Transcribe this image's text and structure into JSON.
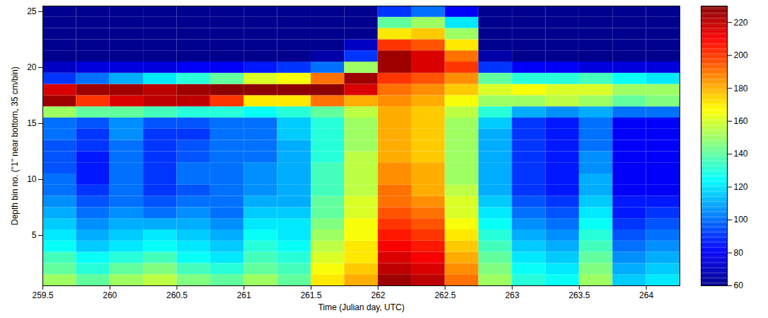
{
  "chart_data": {
    "type": "heatmap",
    "xlabel": "Time (Julian day, UTC)",
    "ylabel": "Depth bin no. (\"1\" near bottom, 35 cm/bin)",
    "xlim": [
      259.5,
      264.25
    ],
    "ylim": [
      0.5,
      25.5
    ],
    "xticks": [
      259.5,
      260,
      260.5,
      261,
      261.5,
      262,
      262.5,
      263,
      263.5,
      264
    ],
    "yticks": [
      5,
      10,
      15,
      20,
      25
    ],
    "x_edges": [
      259.5,
      259.75,
      260,
      260.25,
      260.5,
      260.75,
      261,
      261.25,
      261.5,
      261.75,
      262,
      262.25,
      262.5,
      262.75,
      263,
      263.25,
      263.5,
      263.75,
      264,
      264.25
    ],
    "y_edges": [
      0.5,
      1.5,
      2.5,
      3.5,
      4.5,
      5.5,
      6.5,
      7.5,
      8.5,
      9.5,
      10.5,
      11.5,
      12.5,
      13.5,
      14.5,
      15.5,
      16.5,
      17.5,
      18.5,
      19.5,
      20.5,
      21.5,
      22.5,
      23.5,
      24.5,
      25.5
    ],
    "values": [
      [
        150,
        140,
        135,
        125,
        120,
        115,
        110,
        105,
        100,
        100,
        95,
        95,
        95,
        100,
        100,
        150,
        225,
        215,
        90,
        70,
        60,
        60,
        60,
        60,
        60
      ],
      [
        140,
        130,
        125,
        115,
        110,
        105,
        100,
        95,
        90,
        85,
        85,
        85,
        90,
        90,
        95,
        140,
        200,
        225,
        100,
        75,
        60,
        60,
        60,
        60,
        60
      ],
      [
        150,
        140,
        130,
        120,
        115,
        110,
        105,
        100,
        100,
        100,
        100,
        100,
        100,
        105,
        105,
        140,
        215,
        225,
        110,
        75,
        60,
        60,
        60,
        60,
        60
      ],
      [
        155,
        145,
        135,
        125,
        120,
        110,
        100,
        95,
        90,
        90,
        90,
        90,
        90,
        90,
        95,
        135,
        220,
        220,
        120,
        75,
        60,
        60,
        60,
        60,
        60
      ],
      [
        145,
        135,
        125,
        120,
        115,
        110,
        105,
        100,
        95,
        100,
        100,
        95,
        95,
        90,
        95,
        130,
        220,
        225,
        130,
        80,
        60,
        60,
        60,
        60,
        60
      ],
      [
        140,
        130,
        120,
        115,
        110,
        105,
        100,
        100,
        100,
        100,
        100,
        100,
        100,
        100,
        100,
        130,
        200,
        228,
        140,
        80,
        60,
        60,
        60,
        60,
        60
      ],
      [
        150,
        140,
        135,
        130,
        125,
        120,
        115,
        110,
        105,
        105,
        105,
        100,
        100,
        100,
        100,
        125,
        170,
        228,
        160,
        85,
        60,
        60,
        60,
        60,
        60
      ],
      [
        140,
        135,
        130,
        125,
        120,
        120,
        115,
        110,
        110,
        110,
        110,
        110,
        110,
        115,
        115,
        130,
        170,
        228,
        165,
        90,
        60,
        60,
        60,
        60,
        60
      ],
      [
        170,
        165,
        160,
        155,
        150,
        145,
        140,
        140,
        135,
        135,
        135,
        130,
        130,
        130,
        130,
        140,
        190,
        228,
        190,
        100,
        65,
        60,
        60,
        60,
        60
      ],
      [
        180,
        175,
        170,
        170,
        165,
        165,
        160,
        160,
        155,
        155,
        155,
        155,
        150,
        150,
        150,
        155,
        180,
        215,
        225,
        150,
        90,
        70,
        60,
        60,
        60
      ],
      [
        225,
        220,
        215,
        210,
        205,
        200,
        195,
        190,
        190,
        185,
        185,
        180,
        180,
        180,
        180,
        180,
        185,
        190,
        200,
        225,
        225,
        200,
        170,
        140,
        90
      ],
      [
        220,
        215,
        210,
        205,
        200,
        195,
        190,
        185,
        180,
        180,
        180,
        175,
        175,
        175,
        175,
        175,
        180,
        185,
        195,
        215,
        215,
        195,
        175,
        150,
        100
      ],
      [
        190,
        185,
        180,
        175,
        170,
        165,
        160,
        160,
        155,
        150,
        150,
        150,
        150,
        150,
        150,
        155,
        165,
        175,
        185,
        200,
        190,
        170,
        150,
        120,
        80
      ],
      [
        150,
        145,
        140,
        135,
        130,
        125,
        120,
        115,
        110,
        110,
        110,
        110,
        110,
        110,
        115,
        130,
        150,
        160,
        140,
        90,
        65,
        60,
        60,
        60,
        60
      ],
      [
        130,
        125,
        120,
        115,
        110,
        105,
        100,
        95,
        90,
        90,
        90,
        90,
        90,
        90,
        90,
        110,
        150,
        165,
        130,
        80,
        60,
        60,
        60,
        60,
        60
      ],
      [
        125,
        120,
        115,
        110,
        105,
        100,
        95,
        90,
        85,
        85,
        85,
        85,
        85,
        85,
        85,
        105,
        155,
        160,
        130,
        80,
        60,
        60,
        60,
        60,
        60
      ],
      [
        150,
        145,
        140,
        135,
        130,
        125,
        120,
        115,
        110,
        110,
        105,
        105,
        100,
        100,
        100,
        110,
        150,
        160,
        135,
        75,
        60,
        60,
        60,
        60,
        60
      ],
      [
        115,
        110,
        105,
        100,
        95,
        90,
        85,
        85,
        80,
        80,
        80,
        80,
        80,
        80,
        80,
        100,
        140,
        150,
        125,
        75,
        60,
        60,
        60,
        60,
        60
      ],
      [
        120,
        115,
        110,
        105,
        100,
        95,
        90,
        85,
        80,
        80,
        80,
        80,
        80,
        80,
        80,
        100,
        145,
        150,
        120,
        75,
        60,
        60,
        60,
        60,
        60
      ]
    ],
    "colorbar": {
      "lim": [
        60,
        230
      ],
      "ticks": [
        60,
        80,
        100,
        120,
        140,
        160,
        180,
        200,
        220
      ]
    }
  }
}
